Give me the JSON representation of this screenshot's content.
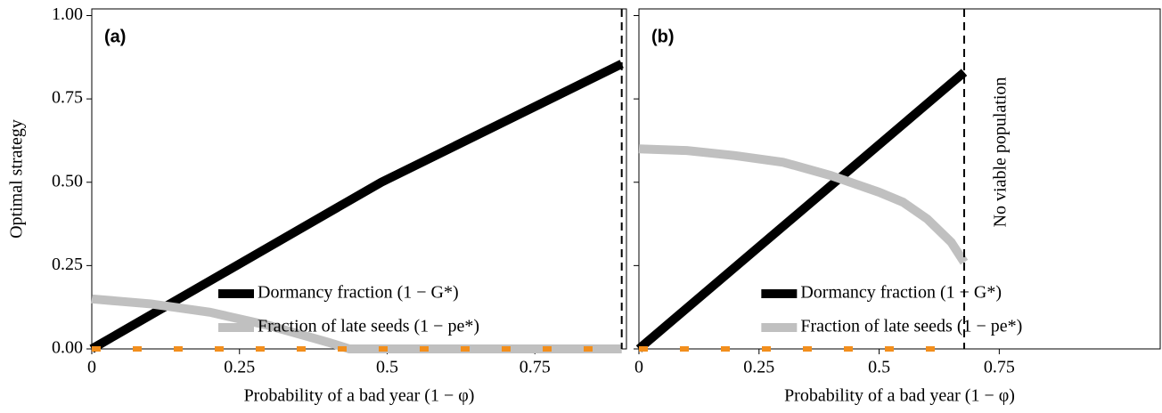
{
  "chart_data": [
    {
      "type": "line",
      "panel_label": "(a)",
      "ylabel": "Optimal strategy",
      "xlabel": "Probability of a bad year (1 − φ)",
      "xlim": [
        0,
        0.905
      ],
      "ylim": [
        0,
        1.02
      ],
      "xticks": [
        0,
        0.25,
        0.5,
        0.75
      ],
      "yticks": [
        {
          "value": 0,
          "label": "0.00"
        },
        {
          "value": 0.25,
          "label": "0.25"
        },
        {
          "value": 0.5,
          "label": "0.50"
        },
        {
          "value": 0.75,
          "label": "0.75"
        },
        {
          "value": 1,
          "label": "1.00"
        }
      ],
      "show_ytick_labels": true,
      "legend": "bottom",
      "vline": 0.897,
      "series": [
        {
          "name": "Dormancy fraction (1 − G*)",
          "color": "#000000",
          "x": [
            0,
            0.49,
            0.897
          ],
          "values": [
            0,
            0.5,
            0.855
          ]
        },
        {
          "name": "Fraction of late seeds (1 − pe*)",
          "color": "#c0c0c0",
          "x": [
            0,
            0.1,
            0.2,
            0.3,
            0.35,
            0.4,
            0.436,
            0.897
          ],
          "values": [
            0.15,
            0.135,
            0.11,
            0.07,
            0.045,
            0.02,
            0,
            0
          ]
        },
        {
          "color": "#f28e1c",
          "dashed": true,
          "x": [
            0,
            0.897
          ],
          "values": [
            0,
            0
          ]
        }
      ]
    },
    {
      "type": "line",
      "panel_label": "(b)",
      "xlabel": "Probability of a bad year (1 − φ)",
      "annotation": "No viable population",
      "xlim": [
        0,
        1.085
      ],
      "ylim": [
        0,
        1.02
      ],
      "xticks": [
        0,
        0.25,
        0.5,
        0.75
      ],
      "yticks": [
        0,
        0.25,
        0.5,
        0.75,
        1
      ],
      "show_ytick_labels": false,
      "legend": "bottom",
      "vline": 0.677,
      "series": [
        {
          "name": "Dormancy fraction (1 − G*)",
          "color": "#000000",
          "x": [
            0,
            0.677
          ],
          "values": [
            0,
            0.83
          ]
        },
        {
          "name": "Fraction of late seeds (1 − pe*)",
          "color": "#c0c0c0",
          "x": [
            0,
            0.1,
            0.2,
            0.3,
            0.4,
            0.5,
            0.55,
            0.6,
            0.65,
            0.677
          ],
          "values": [
            0.6,
            0.595,
            0.58,
            0.56,
            0.52,
            0.47,
            0.44,
            0.39,
            0.32,
            0.26
          ]
        },
        {
          "color": "#f28e1c",
          "dashed": true,
          "x": [
            0,
            0.677
          ],
          "values": [
            0,
            0
          ]
        }
      ]
    }
  ]
}
